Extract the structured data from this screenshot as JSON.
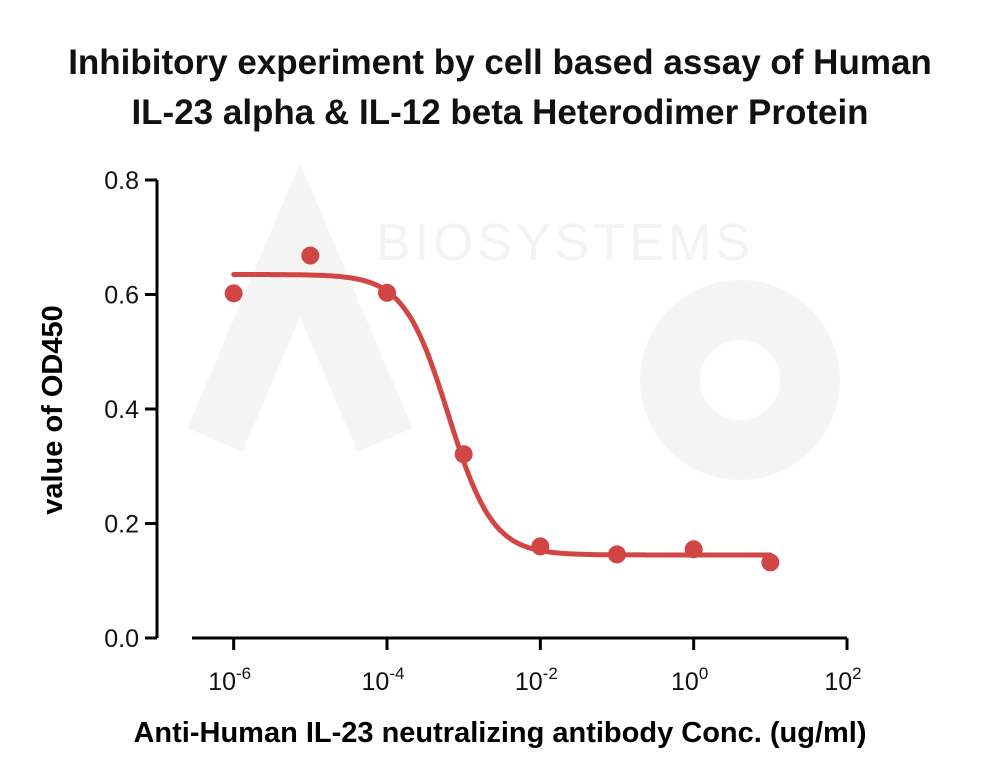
{
  "chart_data": {
    "type": "scatter",
    "title_lines": [
      "Inhibitory experiment by cell based assay of Human",
      "IL-23 alpha & IL-12 beta Heterodimer Protein"
    ],
    "xlabel": "Anti-Human IL-23 neutralizing antibody Conc. (ug/ml)",
    "ylabel": "value of OD450",
    "x_scale": "log10",
    "xlim": [
      1e-07,
      100
    ],
    "ylim": [
      0,
      0.8
    ],
    "x_ticks": [
      {
        "value": 1e-06,
        "base": "10",
        "exp": "-6"
      },
      {
        "value": 0.0001,
        "base": "10",
        "exp": "-4"
      },
      {
        "value": 0.01,
        "base": "10",
        "exp": "-2"
      },
      {
        "value": 1,
        "base": "10",
        "exp": "0"
      },
      {
        "value": 100,
        "base": "10",
        "exp": "2"
      }
    ],
    "y_ticks": [
      {
        "value": 0,
        "label": "0.0"
      },
      {
        "value": 0.2,
        "label": "0.2"
      },
      {
        "value": 0.4,
        "label": "0.4"
      },
      {
        "value": 0.6,
        "label": "0.6"
      },
      {
        "value": 0.8,
        "label": "0.8"
      }
    ],
    "series": [
      {
        "x": [
          1e-06,
          1e-05,
          0.0001,
          0.001,
          0.01,
          0.1,
          1,
          10
        ],
        "y": [
          0.602,
          0.668,
          0.603,
          0.321,
          0.16,
          0.146,
          0.155,
          0.132
        ],
        "color": "#d24545"
      }
    ],
    "fit": {
      "model": "4PL",
      "top": 0.635,
      "bottom": 0.145,
      "log_ic50": -3.2,
      "hill_slope": 1.5,
      "x_range": [
        1e-06,
        10
      ],
      "color": "#d24545"
    },
    "watermark": "BIOSYSTEMS",
    "grid": false,
    "legend": "none"
  }
}
